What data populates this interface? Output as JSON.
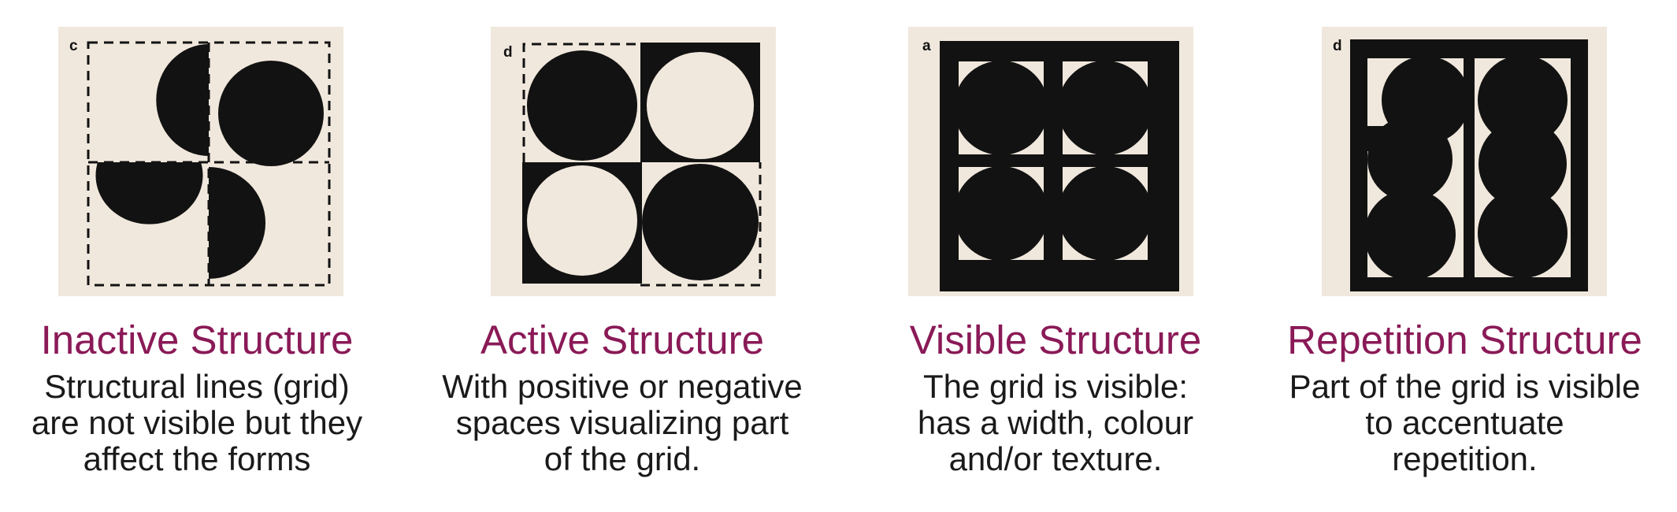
{
  "colors": {
    "accent": "#8a1a57",
    "paper": "#f1e8dd",
    "ink": "#121212",
    "text": "#1a1a1a"
  },
  "panels": [
    {
      "letter": "c",
      "title": "Inactive Structure",
      "desc_lines": [
        "Structural lines (grid)",
        "are not visible but they",
        "affect the forms"
      ]
    },
    {
      "letter": "d",
      "title": "Active Structure",
      "desc_lines": [
        "With positive or negative",
        "spaces visualizing part",
        "of the grid."
      ]
    },
    {
      "letter": "a",
      "title": "Visible Structure",
      "desc_lines": [
        "The grid is visible:",
        "has a width, colour",
        "and/or texture."
      ]
    },
    {
      "letter": "d",
      "title": "Repetition Structure",
      "desc_lines": [
        "Part of the grid is visible",
        "to accentuate",
        "repetition."
      ]
    }
  ]
}
